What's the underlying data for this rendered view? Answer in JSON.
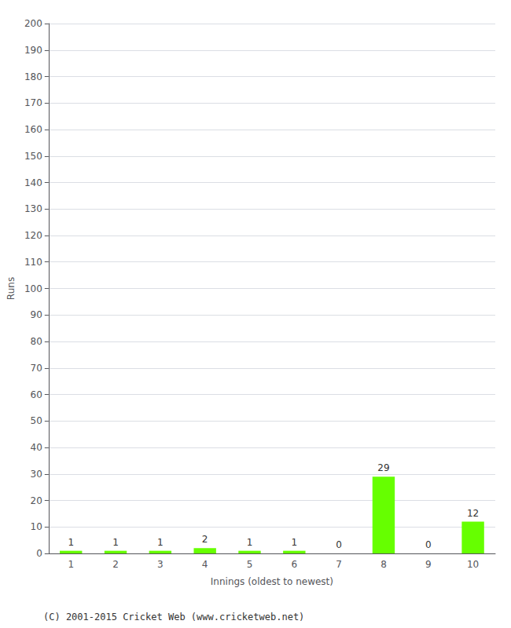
{
  "chart_data": {
    "type": "bar",
    "categories": [
      "1",
      "2",
      "3",
      "4",
      "5",
      "6",
      "7",
      "8",
      "9",
      "10"
    ],
    "values": [
      1,
      1,
      1,
      2,
      1,
      1,
      0,
      29,
      0,
      12
    ],
    "color": "#66ff00",
    "x_label": "Innings (oldest to newest)",
    "y_label": "Runs",
    "ylim": [
      0,
      200
    ],
    "yticks": [
      0,
      10,
      20,
      30,
      40,
      50,
      60,
      70,
      80,
      90,
      100,
      110,
      120,
      130,
      140,
      150,
      160,
      170,
      180,
      190,
      200
    ],
    "grid": true,
    "data_labels": true,
    "annotations": [
      "(C) 2001-2015 Cricket Web (www.cricketweb.net)"
    ]
  }
}
